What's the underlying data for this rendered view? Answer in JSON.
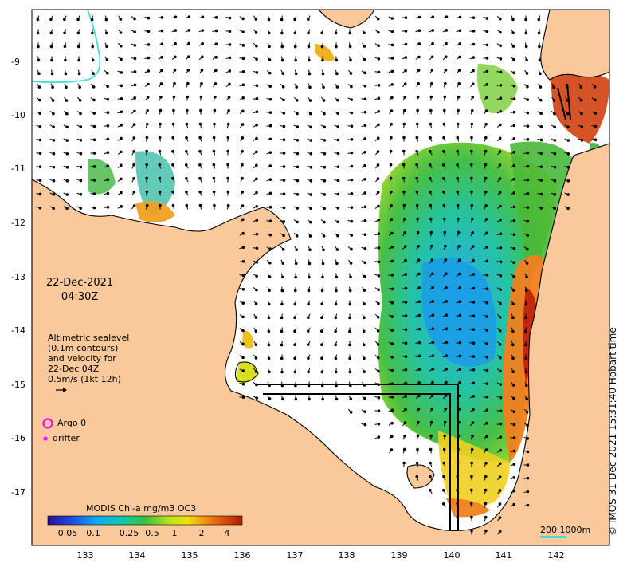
{
  "datetime": {
    "date": "22-Dec-2021",
    "time": "04:30Z"
  },
  "legend_text": {
    "line1": "Altimetric sealevel",
    "line2": "(0.1m contours)",
    "line3": "and velocity for",
    "line4": "22-Dec 04Z",
    "line5": "0.5m/s (1kt 12h)"
  },
  "markers": {
    "argo_label": "Argo 0",
    "drifter_label": "drifter",
    "argo_color": "#ff00ff",
    "drifter_color": "#ff00ff"
  },
  "credit": "© IMOS 31-Dec-2021 15:31:40 Hobart time",
  "colorbar": {
    "title": "MODIS Chl-a mg/m3 OC3",
    "ticks": [
      "0.05",
      "0.1",
      "0.25",
      "0.5",
      "1",
      "2",
      "4"
    ]
  },
  "scale_bar": {
    "label": "200  1000m",
    "color": "#40e0d0"
  },
  "axes": {
    "lat_ticks": [
      "-9",
      "-10",
      "-11",
      "-12",
      "-13",
      "-14",
      "-15",
      "-16",
      "-17"
    ],
    "lon_ticks": [
      "133",
      "134",
      "135",
      "136",
      "137",
      "138",
      "139",
      "140",
      "141",
      "142"
    ]
  },
  "colors": {
    "land": "#f9c99b",
    "ocean": "#ffffff",
    "coast": "#000000",
    "shelf_contour": "#40e0d0"
  }
}
